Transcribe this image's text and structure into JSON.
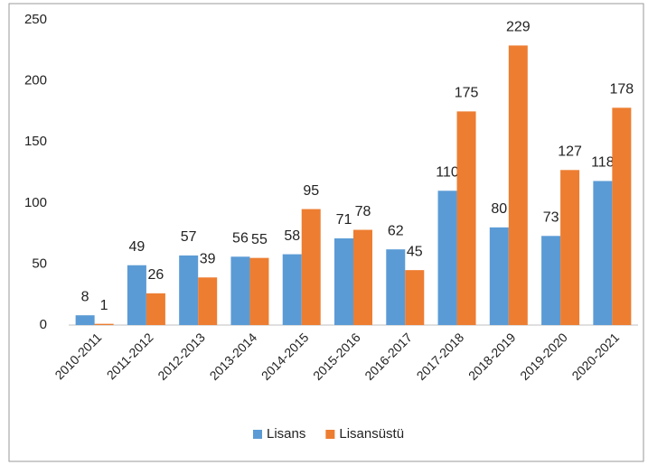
{
  "chart_data": {
    "type": "bar",
    "categories": [
      "2010-2011",
      "2011-2012",
      "2012-2013",
      "2013-2014",
      "2014-2015",
      "2015-2016",
      "2016-2017",
      "2017-2018",
      "2018-2019",
      "2019-2020",
      "2020-2021"
    ],
    "series": [
      {
        "name": "Lisans",
        "color": "#5b9bd5",
        "values": [
          8,
          49,
          57,
          56,
          58,
          71,
          62,
          110,
          80,
          73,
          118
        ]
      },
      {
        "name": "Lisansüstü",
        "color": "#ed7d31",
        "values": [
          1,
          26,
          39,
          55,
          95,
          78,
          45,
          175,
          229,
          127,
          178
        ]
      }
    ],
    "ylim": [
      0,
      250
    ],
    "yticks": [
      0,
      50,
      100,
      150,
      200,
      250
    ],
    "grid": false,
    "legend": "bottom"
  }
}
